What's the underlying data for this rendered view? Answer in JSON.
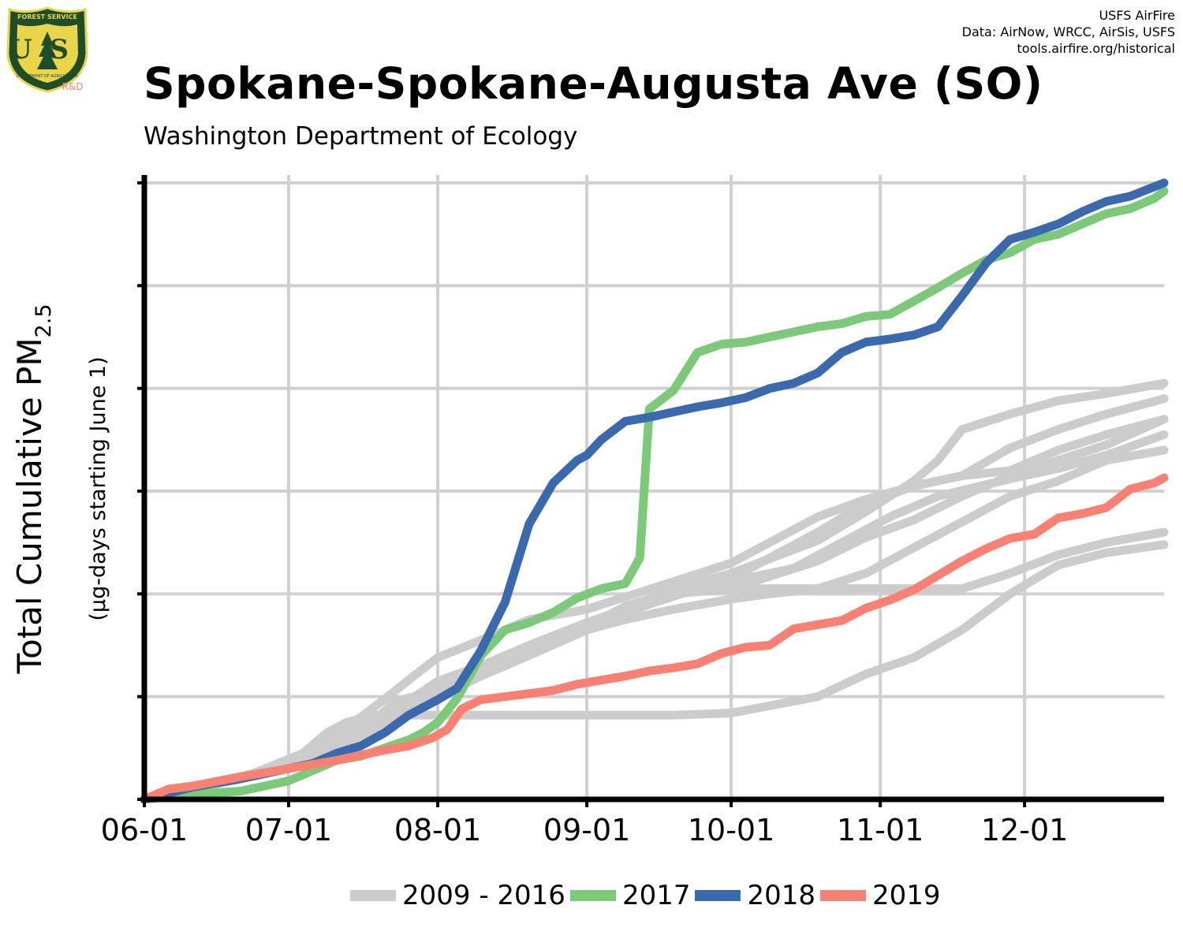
{
  "header": {
    "credit_lines": [
      "USFS AirFire",
      "Data: AirNow, WRCC, AirSis, USFS",
      "tools.airfire.org/historical"
    ],
    "logo_text": {
      "top": "FOREST SERVICE",
      "letters": "US",
      "bottom": "DEPARTMENT OF AGRICULTURE",
      "tag": "R&D"
    },
    "title": "Spokane-Spokane-Augusta Ave (SO)",
    "subtitle": "Washington Department of Ecology"
  },
  "colors": {
    "historic": "#cccccc",
    "y2017": "#7dc97a",
    "y2018": "#3a6aad",
    "y2019": "#f98174",
    "grid": "#d0d0d0",
    "logo_green": "#1f4d2a",
    "logo_gold": "#e8d54a",
    "logo_rd": "#f98174"
  },
  "chart_data": {
    "type": "line",
    "title": "Spokane-Spokane-Augusta Ave (SO)",
    "subtitle": "Washington Department of Ecology",
    "ylabel": "Total Cumulative PM",
    "ylabel_sub": "2.5",
    "ylabel2": "(µg-days starting June 1)",
    "xlabel": "",
    "x_ticks": [
      "06-01",
      "07-01",
      "08-01",
      "09-01",
      "10-01",
      "11-01",
      "12-01"
    ],
    "x_tick_days": [
      0,
      30,
      61,
      92,
      122,
      153,
      183
    ],
    "xlim": [
      0,
      212
    ],
    "ylim": [
      0,
      6
    ],
    "y_gridlines": [
      1,
      2,
      3,
      4,
      5,
      6
    ],
    "y_tick_labels_shown": false,
    "grid": true,
    "legend_position": "bottom",
    "legend": [
      "2009 - 2016",
      "2017",
      "2018",
      "2019"
    ],
    "series": [
      {
        "name": "2009 - 2016",
        "color_key": "historic",
        "group": "historic",
        "lines": [
          {
            "x": [
              0,
              10,
              20,
              30,
              37,
              45,
              52,
              56,
              61,
              70,
              80,
              92,
              100,
              110,
              122,
              128,
              140,
              150,
              160,
              170,
              180,
              190,
              200,
              212
            ],
            "y": [
              0,
              0.12,
              0.22,
              0.35,
              0.55,
              0.8,
              1.05,
              1.2,
              1.38,
              1.55,
              1.75,
              1.85,
              1.97,
              2.12,
              2.3,
              2.45,
              2.75,
              2.92,
              3.05,
              3.15,
              3.42,
              3.6,
              3.75,
              3.9
            ]
          },
          {
            "x": [
              0,
              15,
              30,
              40,
              45,
              48,
              52,
              56,
              61,
              70,
              80,
              92,
              100,
              110,
              122,
              140,
              150,
              160,
              170,
              180,
              190,
              200,
              212
            ],
            "y": [
              0,
              0.15,
              0.32,
              0.5,
              0.62,
              0.78,
              0.95,
              1.0,
              1.08,
              1.3,
              1.5,
              1.72,
              1.85,
              2.0,
              2.05,
              2.32,
              2.55,
              2.72,
              2.95,
              3.15,
              3.3,
              3.45,
              3.7
            ]
          },
          {
            "x": [
              0,
              20,
              33,
              38,
              42,
              48,
              55,
              61,
              70,
              80,
              92,
              100,
              110,
              122,
              140,
              150,
              160,
              170,
              180,
              190,
              200,
              212
            ],
            "y": [
              0,
              0.2,
              0.45,
              0.65,
              0.75,
              0.82,
              0.82,
              0.82,
              0.82,
              0.82,
              0.82,
              0.82,
              0.82,
              0.84,
              1.0,
              1.22,
              1.38,
              1.65,
              2.0,
              2.28,
              2.4,
              2.48
            ]
          },
          {
            "x": [
              0,
              20,
              30,
              40,
              50,
              61,
              70,
              80,
              92,
              100,
              110,
              122,
              130,
              140,
              150,
              160,
              170,
              180,
              190,
              200,
              212
            ],
            "y": [
              0,
              0.2,
              0.32,
              0.52,
              0.8,
              1.15,
              1.3,
              1.45,
              1.68,
              1.88,
              2.02,
              2.05,
              2.05,
              2.05,
              2.05,
              2.05,
              2.05,
              2.2,
              2.38,
              2.5,
              2.6
            ]
          },
          {
            "x": [
              0,
              20,
              30,
              45,
              52,
              61,
              70,
              80,
              92,
              100,
              110,
              122,
              140,
              150,
              160,
              170,
              180,
              190,
              200,
              212
            ],
            "y": [
              0,
              0.22,
              0.32,
              0.62,
              0.75,
              1.0,
              1.25,
              1.45,
              1.67,
              1.85,
              1.98,
              2.15,
              2.6,
              2.88,
              3.05,
              3.15,
              3.2,
              3.4,
              3.55,
              3.7
            ]
          },
          {
            "x": [
              0,
              20,
              30,
              40,
              52,
              61,
              70,
              80,
              92,
              105,
              115,
              122,
              135,
              145,
              155,
              165,
              180,
              190,
              200,
              212
            ],
            "y": [
              0,
              0.2,
              0.35,
              0.55,
              0.9,
              1.05,
              1.22,
              1.42,
              1.68,
              1.9,
              2.05,
              2.12,
              2.25,
              2.5,
              2.75,
              2.95,
              3.12,
              3.22,
              3.35,
              3.55
            ]
          },
          {
            "x": [
              0,
              20,
              30,
              45,
              61,
              70,
              80,
              92,
              100,
              110,
              122,
              140,
              150,
              160,
              165,
              170,
              180,
              190,
              200,
              212
            ],
            "y": [
              0,
              0.2,
              0.3,
              0.62,
              1.0,
              1.2,
              1.4,
              1.65,
              1.85,
              2.05,
              2.2,
              2.52,
              2.8,
              3.1,
              3.3,
              3.6,
              3.75,
              3.88,
              3.95,
              4.05
            ]
          },
          {
            "x": [
              0,
              20,
              30,
              40,
              50,
              61,
              70,
              80,
              92,
              100,
              110,
              122,
              130,
              140,
              150,
              160,
              170,
              180,
              190,
              200,
              212
            ],
            "y": [
              0,
              0.2,
              0.35,
              0.55,
              0.85,
              1.1,
              1.25,
              1.45,
              1.65,
              1.75,
              1.85,
              1.95,
              2.0,
              2.05,
              2.2,
              2.45,
              2.7,
              2.95,
              3.1,
              3.3,
              3.4
            ]
          }
        ]
      },
      {
        "name": "2017",
        "color_key": "y2017",
        "x": [
          0,
          10,
          20,
          30,
          35,
          40,
          45,
          50,
          55,
          58,
          61,
          65,
          70,
          75,
          80,
          85,
          90,
          95,
          100,
          103,
          105,
          110,
          115,
          120,
          125,
          130,
          135,
          140,
          145,
          150,
          155,
          160,
          165,
          170,
          175,
          180,
          185,
          190,
          195,
          200,
          205,
          210,
          212
        ],
        "y": [
          0,
          0.05,
          0.08,
          0.18,
          0.28,
          0.38,
          0.42,
          0.5,
          0.58,
          0.65,
          0.75,
          0.98,
          1.4,
          1.65,
          1.72,
          1.82,
          1.96,
          2.05,
          2.1,
          2.35,
          3.8,
          3.98,
          4.35,
          4.43,
          4.45,
          4.5,
          4.55,
          4.6,
          4.63,
          4.7,
          4.72,
          4.85,
          4.98,
          5.12,
          5.25,
          5.32,
          5.45,
          5.5,
          5.6,
          5.7,
          5.75,
          5.85,
          5.92
        ]
      },
      {
        "name": "2018",
        "color_key": "y2018",
        "x": [
          0,
          10,
          20,
          30,
          35,
          40,
          45,
          50,
          55,
          61,
          65,
          70,
          75,
          80,
          85,
          90,
          92,
          95,
          100,
          105,
          110,
          115,
          120,
          125,
          130,
          135,
          140,
          145,
          150,
          155,
          160,
          165,
          170,
          175,
          180,
          185,
          190,
          195,
          200,
          205,
          212
        ],
        "y": [
          0,
          0.12,
          0.2,
          0.3,
          0.35,
          0.45,
          0.52,
          0.65,
          0.82,
          0.97,
          1.08,
          1.45,
          1.92,
          2.68,
          3.08,
          3.3,
          3.35,
          3.5,
          3.68,
          3.72,
          3.77,
          3.82,
          3.86,
          3.91,
          4.0,
          4.05,
          4.15,
          4.35,
          4.45,
          4.48,
          4.52,
          4.6,
          4.9,
          5.22,
          5.45,
          5.52,
          5.6,
          5.72,
          5.82,
          5.87,
          6.0
        ]
      },
      {
        "name": "2019",
        "color_key": "y2019",
        "x": [
          0,
          5,
          10,
          20,
          30,
          40,
          50,
          55,
          60,
          63,
          66,
          70,
          75,
          80,
          85,
          90,
          95,
          100,
          105,
          110,
          115,
          120,
          125,
          130,
          135,
          140,
          145,
          150,
          155,
          160,
          165,
          170,
          175,
          180,
          185,
          190,
          195,
          200,
          205,
          210,
          212
        ],
        "y": [
          0,
          0.1,
          0.13,
          0.22,
          0.3,
          0.38,
          0.48,
          0.52,
          0.6,
          0.68,
          0.88,
          0.97,
          1.0,
          1.03,
          1.06,
          1.12,
          1.16,
          1.2,
          1.25,
          1.28,
          1.32,
          1.42,
          1.48,
          1.5,
          1.66,
          1.7,
          1.74,
          1.86,
          1.94,
          2.04,
          2.18,
          2.32,
          2.44,
          2.54,
          2.58,
          2.74,
          2.78,
          2.84,
          3.02,
          3.08,
          3.13
        ]
      }
    ]
  }
}
